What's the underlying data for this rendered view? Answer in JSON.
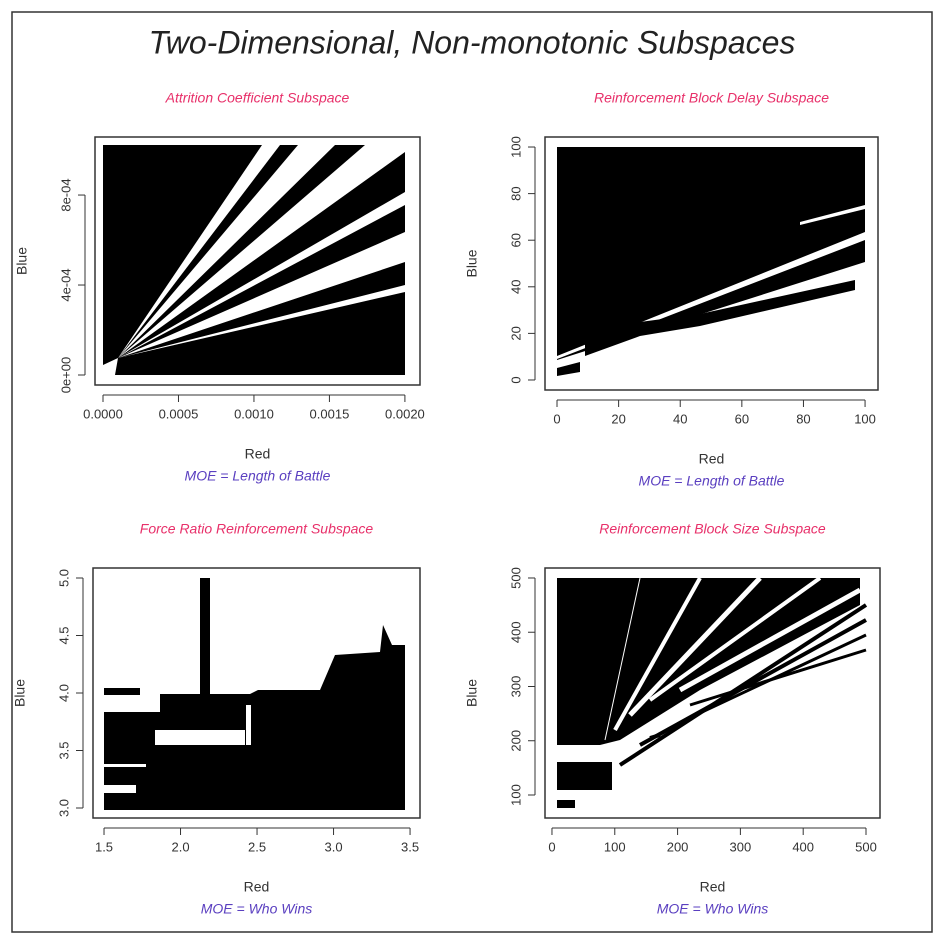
{
  "title": "Two-Dimensional, Non-monotonic Subspaces",
  "chart_data": [
    {
      "type": "region",
      "title": "Attrition Coefficient Subspace",
      "xlabel": "Red",
      "ylabel": "Blue",
      "subtitle": "MOE = Length of Battle",
      "xlim": [
        -5.3e-05,
        0.0021
      ],
      "ylim": [
        -4.44e-05,
        0.001058
      ],
      "xticks": [
        {
          "value": 0,
          "label": "0.0000"
        },
        0.0005,
        {
          "value": 0.001,
          "label": "0.0010"
        },
        0.0015,
        {
          "value": 0.002,
          "label": "0.0020"
        }
      ],
      "yticks": [
        {
          "value": 0,
          "label": "0e+00"
        },
        {
          "value": 0.0004,
          "label": "4e-04"
        },
        {
          "value": 0.0008,
          "label": "8e-04"
        }
      ]
    },
    {
      "type": "region",
      "title": "Reinforcement Block Delay Subspace",
      "xlabel": "Red",
      "ylabel": "Blue",
      "subtitle": "MOE = Length of Battle",
      "xlim": [
        -3.9,
        104.2
      ],
      "ylim": [
        -4.3,
        104.3
      ],
      "xticks": [
        0,
        20,
        40,
        60,
        80,
        100
      ],
      "yticks": [
        0,
        20,
        40,
        60,
        80,
        100
      ]
    },
    {
      "type": "region",
      "title": "Force Ratio Reinforcement Subspace",
      "xlabel": "Red",
      "ylabel": "Blue",
      "subtitle": "MOE = Who Wins",
      "xlim": [
        1.428,
        3.565
      ],
      "ylim": [
        2.913,
        5.087
      ],
      "xticks": [
        1.5,
        {
          "value": 2,
          "label": "2.0"
        },
        2.5,
        {
          "value": 3,
          "label": "3.0"
        },
        3.5
      ],
      "yticks": [
        {
          "value": 3,
          "label": "3.0"
        },
        3.5,
        {
          "value": 4,
          "label": "4.0"
        },
        4.5,
        {
          "value": 5,
          "label": "5.0"
        }
      ]
    },
    {
      "type": "region",
      "title": "Reinforcement Block Size Subspace",
      "xlabel": "Red",
      "ylabel": "Blue",
      "subtitle": "MOE = Who Wins",
      "xlim": [
        -11.1,
        522.3
      ],
      "ylim": [
        57.6,
        518.4
      ],
      "xticks": [
        0,
        100,
        200,
        300,
        400,
        500
      ],
      "yticks": [
        100,
        200,
        300,
        400,
        500
      ]
    }
  ]
}
